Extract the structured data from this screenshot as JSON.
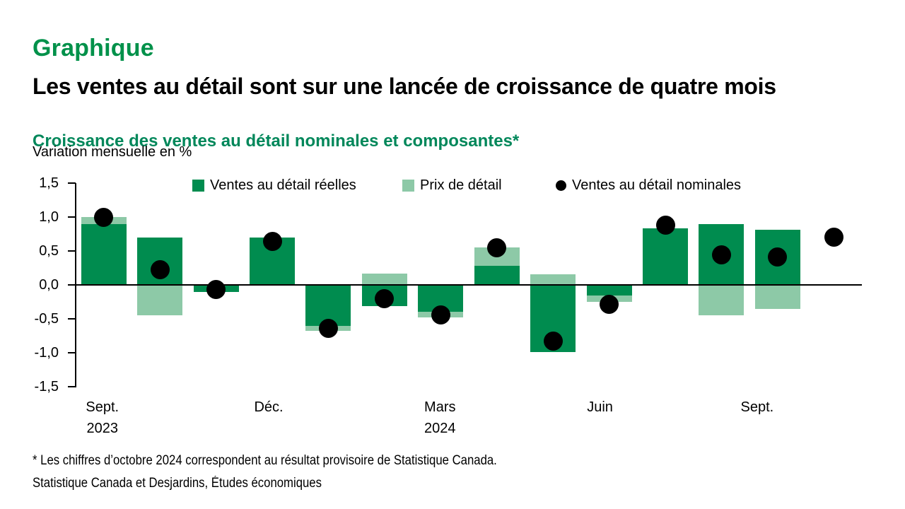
{
  "header": {
    "kicker": "Graphique",
    "title": "Les ventes au détail sont sur une lancée de croissance de quatre mois"
  },
  "footnote": "* Les chiffres d’octobre 2024 correspondent au résultat provisoire de Statistique Canada.",
  "source": "Statistique Canada et Desjardins, Études économiques",
  "colors": {
    "kicker_green": "#00914A",
    "chart_title_green": "#00875A",
    "real_bar_green": "#008C4F",
    "price_bar_green": "#8DC9A7",
    "nominal_dot_black": "#000000"
  },
  "chart_data": {
    "type": "bar",
    "subtype": "stacked bars with scatter points",
    "title": "Croissance des ventes au détail nominales et composantes*",
    "units_label": "Variation mensuelle en %",
    "ylim": [
      -1.5,
      1.5
    ],
    "ytick_step": 0.5,
    "y_ticklabels": [
      "1,5",
      "1,0",
      "0,5",
      "0,0",
      "-0,5",
      "-1,0",
      "-1,5"
    ],
    "grid": "off",
    "legend_position": "top",
    "n_slots": 14,
    "series": [
      {
        "name": "Ventes au détail réelles",
        "type": "bar",
        "color": "#008C4F",
        "values": [
          0.9,
          0.7,
          -0.1,
          0.7,
          -0.6,
          -0.31,
          -0.4,
          0.28,
          -0.99,
          -0.16,
          0.83,
          0.9,
          0.81,
          null
        ]
      },
      {
        "name": "Prix de détail",
        "type": "bar",
        "color": "#8DC9A7",
        "values": [
          0.1,
          -0.45,
          0,
          0,
          -0.08,
          0.17,
          -0.08,
          0.27,
          0.16,
          -0.09,
          0,
          -0.45,
          -0.35,
          null
        ]
      },
      {
        "name": "Ventes au détail nominales",
        "type": "point",
        "color": "#000000",
        "values": [
          1.0,
          0.22,
          -0.07,
          0.64,
          -0.64,
          -0.2,
          -0.44,
          0.55,
          -0.83,
          -0.29,
          0.88,
          0.44,
          0.41,
          0.7
        ]
      }
    ],
    "x_ticks": [
      {
        "slot": 0,
        "lines": [
          "Sept.",
          "2023"
        ]
      },
      {
        "slot": 3,
        "lines": [
          "Déc."
        ]
      },
      {
        "slot": 6,
        "lines": [
          "Mars",
          "2024"
        ]
      },
      {
        "slot": 9,
        "lines": [
          "Juin"
        ]
      },
      {
        "slot": 12,
        "lines": [
          "Sept."
        ]
      }
    ]
  }
}
